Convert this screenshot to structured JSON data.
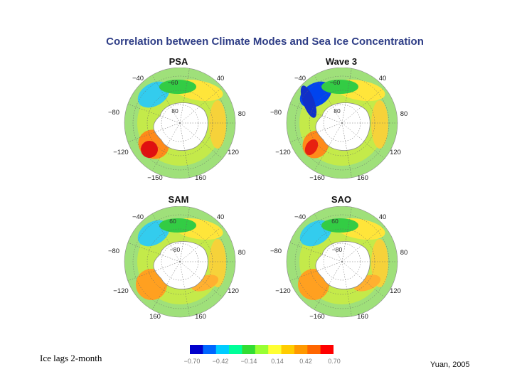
{
  "title": "Correlation between Climate Modes and Sea Ice Concentration",
  "note": "Ice lags 2-month",
  "credit": "Yuan, 2005",
  "panels": [
    {
      "id": "psa",
      "title": "PSA",
      "labels": {
        "tl": "−40",
        "tr": "40",
        "ml": "−80",
        "mr": "80",
        "bl": "−120",
        "br": "120",
        "bbl": "−150",
        "bbr": "160",
        "top": "−60",
        "center": "80"
      },
      "accent": "strong-red"
    },
    {
      "id": "wave3",
      "title": "Wave 3",
      "labels": {
        "tl": "−40",
        "tr": "40",
        "ml": "−80",
        "mr": "80",
        "bl": "−120",
        "br": "120",
        "bbl": "−160",
        "bbr": "160",
        "top": "−60",
        "center": "80"
      },
      "accent": "blue-band"
    },
    {
      "id": "sam",
      "title": "SAM",
      "labels": {
        "tl": "−40",
        "tr": "40",
        "ml": "−80",
        "mr": "80",
        "bl": "−120",
        "br": "120",
        "bbl": "160",
        "bbr": "160",
        "top": "60",
        "center": "−80"
      },
      "accent": "orange"
    },
    {
      "id": "sao",
      "title": "SAO",
      "labels": {
        "tl": "−40",
        "tr": "40",
        "ml": "−80",
        "mr": "80",
        "bl": "−120",
        "br": "120",
        "bbl": "−160",
        "bbr": "160",
        "top": "60",
        "center": "−80"
      },
      "accent": "orange"
    }
  ],
  "colorbar": {
    "colors": [
      "#0000cc",
      "#0066ff",
      "#00ccff",
      "#00ff99",
      "#33dd33",
      "#99ff33",
      "#ffff33",
      "#ffcc00",
      "#ff9900",
      "#ff6600",
      "#ff0000"
    ],
    "ticks": [
      "−0.70",
      "−0.42",
      "−0.14",
      "0.14",
      "0.42",
      "0.70"
    ]
  }
}
